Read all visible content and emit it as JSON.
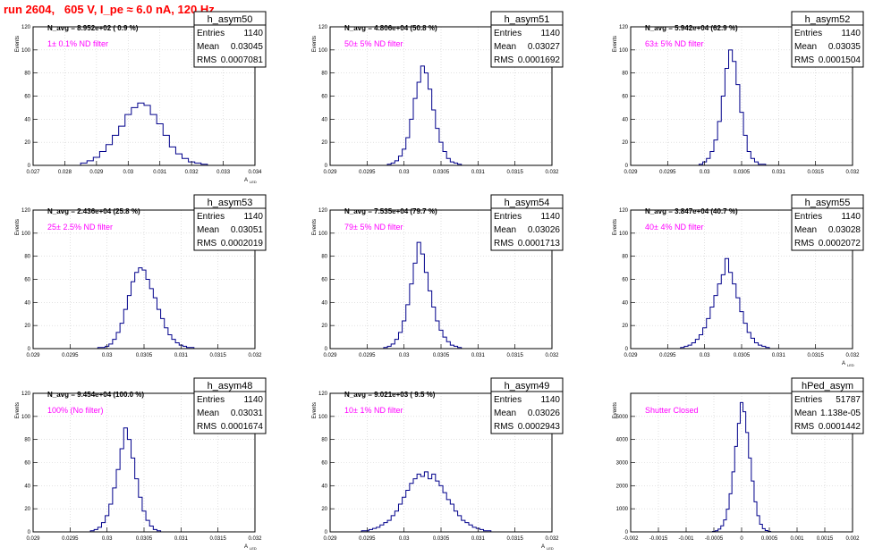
{
  "run_title": "run 2604,   605 V, I_pe ≈ 6.0 nA, 120 Hz",
  "colors": {
    "histogram": "#00008b",
    "annotation": "#ff00ff",
    "title": "#ff0000",
    "frame": "#000000"
  },
  "stat_labels": {
    "entries": "Entries",
    "mean": "Mean",
    "rms": "RMS"
  },
  "chart_data": [
    {
      "type": "histogram",
      "name": "h_asym50",
      "navg": "N_avg = 8.952e+02 ( 0.9 %)",
      "note": "1± 0.1% ND filter",
      "entries": "1140",
      "mean": "0.03045",
      "rms": "0.0007081",
      "xlim": [
        0.027,
        0.034
      ],
      "ylim": [
        0,
        120
      ],
      "xlabel": "A",
      "xlabel_sub": "LED",
      "ylabel": "Events",
      "xticks": [
        0.027,
        0.028,
        0.029,
        0.03,
        0.031,
        0.032,
        0.033,
        0.034
      ],
      "xtick_labels": [
        "0.027",
        "0.028",
        "0.029",
        "0.03",
        "0.031",
        "0.032",
        "0.033",
        "0.034"
      ],
      "yticks": [
        0,
        20,
        40,
        60,
        80,
        100,
        120
      ],
      "ytick_labels": [
        "0",
        "20",
        "40",
        "60",
        "80",
        "100",
        "120"
      ],
      "x": [
        0.0286,
        0.0288,
        0.029,
        0.0292,
        0.0294,
        0.0296,
        0.0298,
        0.03,
        0.0302,
        0.0304,
        0.0306,
        0.0308,
        0.031,
        0.0312,
        0.0314,
        0.0316,
        0.0318,
        0.032,
        0.0322,
        0.0324
      ],
      "y": [
        2,
        4,
        7,
        12,
        18,
        26,
        34,
        44,
        50,
        54,
        52,
        44,
        36,
        26,
        16,
        10,
        6,
        3,
        2,
        1
      ]
    },
    {
      "type": "histogram",
      "name": "h_asym51",
      "navg": "N_avg = 4.806e+04 (50.8 %)",
      "note": "50± 5% ND filter",
      "entries": "1140",
      "mean": "0.03027",
      "rms": "0.0001692",
      "xlim": [
        0.029,
        0.032
      ],
      "ylim": [
        0,
        120
      ],
      "xlabel": "",
      "xlabel_sub": "",
      "ylabel": "Events",
      "xticks": [
        0.029,
        0.0295,
        0.03,
        0.0305,
        0.031,
        0.0315,
        0.032
      ],
      "xtick_labels": [
        "0.029",
        "0.0295",
        "0.03",
        "0.0305",
        "0.031",
        "0.0315",
        "0.032"
      ],
      "yticks": [
        0,
        20,
        40,
        60,
        80,
        100,
        120
      ],
      "ytick_labels": [
        "0",
        "20",
        "40",
        "60",
        "80",
        "100",
        "120"
      ],
      "x": [
        0.0298,
        0.02985,
        0.0299,
        0.02995,
        0.03,
        0.03005,
        0.0301,
        0.03015,
        0.0302,
        0.03025,
        0.0303,
        0.03035,
        0.0304,
        0.03045,
        0.0305,
        0.03055,
        0.0306,
        0.03065,
        0.0307,
        0.03075
      ],
      "y": [
        1,
        2,
        4,
        8,
        14,
        24,
        40,
        58,
        72,
        86,
        80,
        66,
        48,
        32,
        20,
        12,
        6,
        3,
        2,
        1
      ]
    },
    {
      "type": "histogram",
      "name": "h_asym52",
      "navg": "N_avg = 5.942e+04 (62.9 %)",
      "note": "63± 5% ND filter",
      "entries": "1140",
      "mean": "0.03035",
      "rms": "0.0001504",
      "xlim": [
        0.029,
        0.032
      ],
      "ylim": [
        0,
        120
      ],
      "xlabel": "",
      "xlabel_sub": "",
      "ylabel": "Events",
      "xticks": [
        0.029,
        0.0295,
        0.03,
        0.0305,
        0.031,
        0.0315,
        0.032
      ],
      "xtick_labels": [
        "0.029",
        "0.0295",
        "0.03",
        "0.0305",
        "0.031",
        "0.0315",
        "0.032"
      ],
      "yticks": [
        0,
        20,
        40,
        60,
        80,
        100,
        120
      ],
      "ytick_labels": [
        "0",
        "20",
        "40",
        "60",
        "80",
        "100",
        "120"
      ],
      "x": [
        0.02995,
        0.03,
        0.03005,
        0.0301,
        0.03015,
        0.0302,
        0.03025,
        0.0303,
        0.03035,
        0.0304,
        0.03045,
        0.0305,
        0.03055,
        0.0306,
        0.03065,
        0.0307,
        0.03075,
        0.0308
      ],
      "y": [
        1,
        3,
        6,
        12,
        22,
        38,
        60,
        84,
        100,
        90,
        70,
        46,
        26,
        12,
        6,
        3,
        1,
        1
      ]
    },
    {
      "type": "histogram",
      "name": "h_asym53",
      "navg": "N_avg = 2.436e+04 (25.8 %)",
      "note": "25± 2.5% ND filter",
      "entries": "1140",
      "mean": "0.03051",
      "rms": "0.0002019",
      "xlim": [
        0.029,
        0.032
      ],
      "ylim": [
        0,
        120
      ],
      "xlabel": "",
      "xlabel_sub": "",
      "ylabel": "Events",
      "xticks": [
        0.029,
        0.0295,
        0.03,
        0.0305,
        0.031,
        0.0315,
        0.032
      ],
      "xtick_labels": [
        "0.029",
        "0.0295",
        "0.03",
        "0.0305",
        "0.031",
        "0.0315",
        "0.032"
      ],
      "yticks": [
        0,
        20,
        40,
        60,
        80,
        100,
        120
      ],
      "ytick_labels": [
        "0",
        "20",
        "40",
        "60",
        "80",
        "100",
        "120"
      ],
      "x": [
        0.0299,
        0.02995,
        0.03,
        0.03005,
        0.0301,
        0.03015,
        0.0302,
        0.03025,
        0.0303,
        0.03035,
        0.0304,
        0.03045,
        0.0305,
        0.03055,
        0.0306,
        0.03065,
        0.0307,
        0.03075,
        0.0308,
        0.03085,
        0.0309,
        0.03095,
        0.031,
        0.03105,
        0.0311,
        0.03115
      ],
      "y": [
        1,
        1,
        2,
        4,
        8,
        14,
        22,
        34,
        46,
        58,
        66,
        70,
        68,
        60,
        52,
        44,
        34,
        26,
        18,
        12,
        8,
        5,
        3,
        2,
        1,
        1
      ]
    },
    {
      "type": "histogram",
      "name": "h_asym54",
      "navg": "N_avg = 7.535e+04 (79.7 %)",
      "note": "79± 5% ND filter",
      "entries": "1140",
      "mean": "0.03026",
      "rms": "0.0001713",
      "xlim": [
        0.029,
        0.032
      ],
      "ylim": [
        0,
        120
      ],
      "xlabel": "",
      "xlabel_sub": "",
      "ylabel": "Events",
      "xticks": [
        0.029,
        0.0295,
        0.03,
        0.0305,
        0.031,
        0.0315,
        0.032
      ],
      "xtick_labels": [
        "0.029",
        "0.0295",
        "0.03",
        "0.0305",
        "0.031",
        "0.0315",
        "0.032"
      ],
      "yticks": [
        0,
        20,
        40,
        60,
        80,
        100,
        120
      ],
      "ytick_labels": [
        "0",
        "20",
        "40",
        "60",
        "80",
        "100",
        "120"
      ],
      "x": [
        0.02975,
        0.0298,
        0.02985,
        0.0299,
        0.02995,
        0.03,
        0.03005,
        0.0301,
        0.03015,
        0.0302,
        0.03025,
        0.0303,
        0.03035,
        0.0304,
        0.03045,
        0.0305,
        0.03055,
        0.0306,
        0.03065,
        0.0307,
        0.03075
      ],
      "y": [
        1,
        2,
        4,
        8,
        14,
        24,
        38,
        56,
        74,
        92,
        82,
        66,
        50,
        36,
        24,
        16,
        10,
        6,
        3,
        2,
        1
      ]
    },
    {
      "type": "histogram",
      "name": "h_asym55",
      "navg": "N_avg = 3.847e+04 (40.7 %)",
      "note": "40± 4% ND filter",
      "entries": "1140",
      "mean": "0.03028",
      "rms": "0.0002072",
      "xlim": [
        0.029,
        0.032
      ],
      "ylim": [
        0,
        120
      ],
      "xlabel": "A",
      "xlabel_sub": "LED",
      "ylabel": "Events",
      "xticks": [
        0.029,
        0.0295,
        0.03,
        0.0305,
        0.031,
        0.0315,
        0.032
      ],
      "xtick_labels": [
        "0.029",
        "0.0295",
        "0.03",
        "0.0305",
        "0.031",
        "0.0315",
        "0.032"
      ],
      "yticks": [
        0,
        20,
        40,
        60,
        80,
        100,
        120
      ],
      "ytick_labels": [
        "0",
        "20",
        "40",
        "60",
        "80",
        "100",
        "120"
      ],
      "x": [
        0.0297,
        0.02975,
        0.0298,
        0.02985,
        0.0299,
        0.02995,
        0.03,
        0.03005,
        0.0301,
        0.03015,
        0.0302,
        0.03025,
        0.0303,
        0.03035,
        0.0304,
        0.03045,
        0.0305,
        0.03055,
        0.0306,
        0.03065,
        0.0307,
        0.03075,
        0.0308,
        0.03085
      ],
      "y": [
        1,
        2,
        3,
        5,
        8,
        12,
        18,
        26,
        36,
        46,
        56,
        64,
        78,
        66,
        56,
        44,
        32,
        22,
        14,
        9,
        5,
        3,
        2,
        1
      ]
    },
    {
      "type": "histogram",
      "name": "h_asym48",
      "navg": "N_avg = 9.454e+04 (100.0 %)",
      "note": "100% (No filter)",
      "entries": "1140",
      "mean": "0.03031",
      "rms": "0.0001674",
      "xlim": [
        0.029,
        0.032
      ],
      "ylim": [
        0,
        120
      ],
      "xlabel": "A",
      "xlabel_sub": "LED",
      "ylabel": "Events",
      "xticks": [
        0.029,
        0.0295,
        0.03,
        0.0305,
        0.031,
        0.0315,
        0.032
      ],
      "xtick_labels": [
        "0.029",
        "0.0295",
        "0.03",
        "0.0305",
        "0.031",
        "0.0315",
        "0.032"
      ],
      "yticks": [
        0,
        20,
        40,
        60,
        80,
        100,
        120
      ],
      "ytick_labels": [
        "0",
        "20",
        "40",
        "60",
        "80",
        "100",
        "120"
      ],
      "x": [
        0.0298,
        0.02985,
        0.0299,
        0.02995,
        0.03,
        0.03005,
        0.0301,
        0.03015,
        0.0302,
        0.03025,
        0.0303,
        0.03035,
        0.0304,
        0.03045,
        0.0305,
        0.03055,
        0.0306,
        0.03065,
        0.0307
      ],
      "y": [
        1,
        2,
        4,
        8,
        14,
        24,
        38,
        54,
        72,
        90,
        80,
        64,
        46,
        30,
        18,
        10,
        5,
        2,
        1
      ]
    },
    {
      "type": "histogram",
      "name": "h_asym49",
      "navg": "N_avg = 9.021e+03 ( 9.5 %)",
      "note": "10± 1% ND filter",
      "entries": "1140",
      "mean": "0.03026",
      "rms": "0.0002943",
      "xlim": [
        0.029,
        0.032
      ],
      "ylim": [
        0,
        120
      ],
      "xlabel": "A",
      "xlabel_sub": "LED",
      "ylabel": "Events",
      "xticks": [
        0.029,
        0.0295,
        0.03,
        0.0305,
        0.031,
        0.0315,
        0.032
      ],
      "xtick_labels": [
        "0.029",
        "0.0295",
        "0.03",
        "0.0305",
        "0.031",
        "0.0315",
        "0.032"
      ],
      "yticks": [
        0,
        20,
        40,
        60,
        80,
        100,
        120
      ],
      "ytick_labels": [
        "0",
        "20",
        "40",
        "60",
        "80",
        "100",
        "120"
      ],
      "x": [
        0.02945,
        0.0295,
        0.02955,
        0.0296,
        0.02965,
        0.0297,
        0.02975,
        0.0298,
        0.02985,
        0.0299,
        0.02995,
        0.03,
        0.03005,
        0.0301,
        0.03015,
        0.0302,
        0.03025,
        0.0303,
        0.03035,
        0.0304,
        0.03045,
        0.0305,
        0.03055,
        0.0306,
        0.03065,
        0.0307,
        0.03075,
        0.0308,
        0.03085,
        0.0309,
        0.03095,
        0.031,
        0.03105,
        0.0311,
        0.03115
      ],
      "y": [
        1,
        1,
        2,
        3,
        4,
        6,
        8,
        10,
        14,
        18,
        24,
        30,
        36,
        42,
        46,
        50,
        48,
        52,
        46,
        50,
        44,
        40,
        34,
        28,
        24,
        18,
        14,
        10,
        8,
        6,
        4,
        3,
        2,
        1,
        1
      ]
    },
    {
      "type": "histogram",
      "name": "hPed_asym",
      "navg": "",
      "note": "Shutter Closed",
      "entries": "51787",
      "mean": "1.138e-05",
      "rms": "0.0001442",
      "xlim": [
        -0.002,
        0.002
      ],
      "ylim": [
        0,
        6000
      ],
      "xlabel": "",
      "xlabel_sub": "",
      "ylabel": "Events",
      "xticks": [
        -0.002,
        -0.0015,
        -0.001,
        -0.0005,
        0,
        0.0005,
        0.001,
        0.0015,
        0.002
      ],
      "xtick_labels": [
        "-0.002",
        "-0.0015",
        "-0.001",
        "-0.0005",
        "0",
        "0.0005",
        "0.001",
        "0.0015",
        "0.002"
      ],
      "yticks": [
        0,
        1000,
        2000,
        3000,
        4000,
        5000
      ],
      "ytick_labels": [
        "0",
        "1000",
        "2000",
        "3000",
        "4000",
        "5000"
      ],
      "x": [
        -0.0005,
        -0.00045,
        -0.0004,
        -0.00035,
        -0.0003,
        -0.00025,
        -0.0002,
        -0.00015,
        -0.0001,
        -5e-05,
        0.0,
        5e-05,
        0.0001,
        0.00015,
        0.0002,
        0.00025,
        0.0003,
        0.00035,
        0.0004,
        0.00045,
        0.0005
      ],
      "y": [
        20,
        50,
        120,
        260,
        520,
        980,
        1650,
        2600,
        3700,
        4700,
        5600,
        5200,
        4300,
        3200,
        2200,
        1300,
        700,
        330,
        140,
        60,
        20
      ]
    }
  ]
}
